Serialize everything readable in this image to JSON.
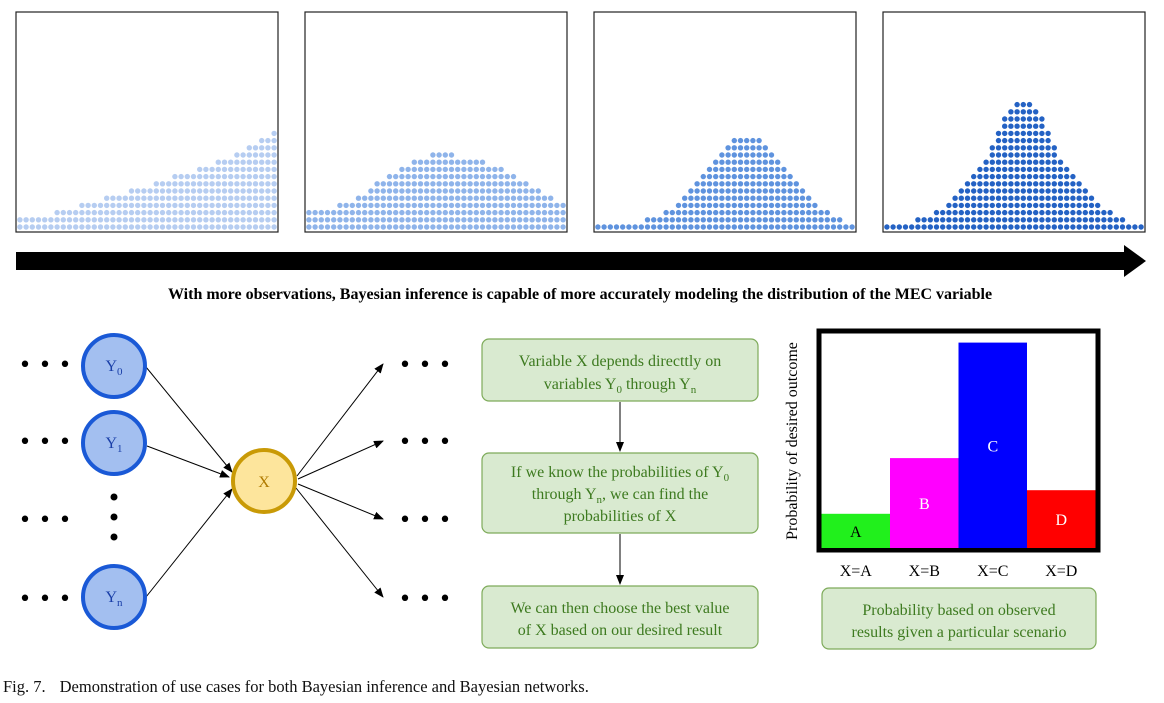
{
  "top": {
    "panels": [
      {
        "color": "#b6cdf1",
        "heights": [
          2,
          2,
          2,
          2,
          2,
          2,
          3,
          3,
          3,
          3,
          4,
          4,
          4,
          4,
          5,
          5,
          5,
          5,
          6,
          6,
          6,
          6,
          7,
          7,
          7,
          8,
          8,
          8,
          8,
          9,
          9,
          9,
          10,
          10,
          10,
          11,
          11,
          12,
          12,
          13,
          13,
          14
        ]
      },
      {
        "color": "#8fb4ea",
        "heights": [
          3,
          3,
          3,
          3,
          3,
          4,
          4,
          4,
          5,
          5,
          6,
          7,
          7,
          8,
          8,
          9,
          9,
          10,
          10,
          10,
          11,
          11,
          11,
          11,
          10,
          10,
          10,
          10,
          10,
          9,
          9,
          9,
          8,
          8,
          7,
          7,
          6,
          6,
          5,
          5,
          4,
          4
        ]
      },
      {
        "color": "#5f93de",
        "heights": [
          1,
          1,
          1,
          1,
          1,
          1,
          1,
          1,
          2,
          2,
          2,
          3,
          3,
          4,
          5,
          6,
          7,
          8,
          9,
          10,
          11,
          12,
          13,
          13,
          13,
          13,
          13,
          12,
          11,
          10,
          9,
          8,
          7,
          6,
          5,
          4,
          3,
          3,
          2,
          2,
          1,
          1
        ]
      },
      {
        "color": "#2462c4",
        "heights": [
          1,
          1,
          1,
          1,
          1,
          2,
          2,
          2,
          3,
          3,
          4,
          5,
          6,
          7,
          8,
          9,
          10,
          12,
          14,
          16,
          17,
          18,
          18,
          18,
          17,
          16,
          14,
          12,
          10,
          9,
          8,
          7,
          6,
          5,
          4,
          3,
          3,
          2,
          2,
          1,
          1,
          1
        ]
      }
    ],
    "arrow_label": "With more observations, Bayesian inference is capable of more accurately modeling the distribution of the  MEC variable"
  },
  "network": {
    "nodes": {
      "y0": {
        "base": "Y",
        "sub": "0"
      },
      "y1": {
        "base": "Y",
        "sub": "1"
      },
      "yn": {
        "base": "Y",
        "sub": "n"
      },
      "x": {
        "label": "X"
      }
    },
    "ellipsis": "• • •"
  },
  "flow": {
    "box1": {
      "line1": "Variable X depends directtly on",
      "line2_a": "variables Y",
      "line2_sub1": "0",
      "line2_b": " through Y",
      "line2_sub2": "n"
    },
    "box2": {
      "line1_a": "If we know the probabilities of Y",
      "line1_sub": "0",
      "line2_a": "through Y",
      "line2_sub": "n",
      "line2_b": ", we can find the",
      "line3": "probabilities of X"
    },
    "box3": {
      "line1": "We can then choose the best value",
      "line2": "of X based on our desired result"
    }
  },
  "chart_data": {
    "type": "bar",
    "categories": [
      "X=A",
      "X=B",
      "X=C",
      "X=D"
    ],
    "values": [
      0.16,
      0.42,
      0.96,
      0.27
    ],
    "bar_labels": [
      "A",
      "B",
      "C",
      "D"
    ],
    "colors": [
      "#21f01c",
      "#ff00ff",
      "#0000ff",
      "#ff0000"
    ],
    "ylabel": "Probability of desired outcome",
    "ylim": [
      0,
      1
    ],
    "grid": false
  },
  "chart_note": {
    "line1": "Probability based on observed",
    "line2": "results given a particular scenario"
  },
  "caption": {
    "fig": "Fig. 7.",
    "text": "Demonstration of use cases for both Bayesian inference and Bayesian networks."
  }
}
